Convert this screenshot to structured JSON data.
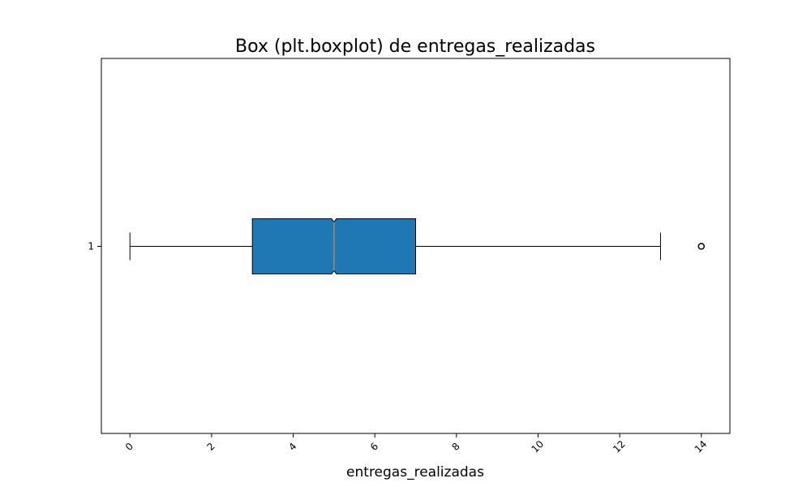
{
  "chart_data": {
    "type": "boxplot",
    "title": "Box (plt.boxplot) de entregas_realizadas",
    "xlabel": "entregas_realizadas",
    "ylabel": "",
    "orientation": "horizontal",
    "notched": true,
    "xlim": [
      -0.7,
      14.7
    ],
    "xticks": [
      0,
      2,
      4,
      6,
      8,
      10,
      12,
      14
    ],
    "xtick_rotation": -45,
    "yticks": [
      1
    ],
    "grid": false,
    "boxes": [
      {
        "label": "1",
        "whisker_low": 0,
        "q1": 3,
        "median": 5,
        "q3": 7,
        "whisker_high": 13,
        "outliers": [
          14
        ]
      }
    ],
    "colors": {
      "box_fill": "#1f77b4",
      "median_line": "#ff7f0e",
      "edge": "#000000"
    }
  }
}
